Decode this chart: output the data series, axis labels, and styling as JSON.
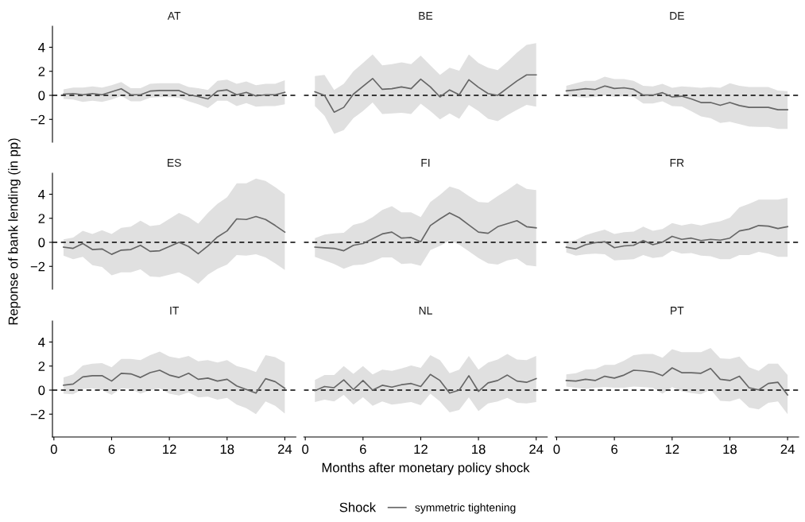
{
  "chart_data": [
    {
      "type": "line",
      "title": "AT",
      "x": [
        1,
        2,
        3,
        4,
        5,
        6,
        7,
        8,
        9,
        10,
        11,
        12,
        13,
        14,
        15,
        16,
        17,
        18,
        19,
        20,
        21,
        22,
        23,
        24
      ],
      "xlim": [
        -0.15,
        25.15
      ],
      "ylim": [
        -3.9,
        5.75
      ],
      "xticks": [
        0,
        6,
        12,
        18,
        24
      ],
      "yticks": [
        -2,
        0,
        2,
        4
      ],
      "tick_labels": "y",
      "grid": false,
      "ref_lines": [
        {
          "axis": "y",
          "value": 0,
          "color": "#000000",
          "line_style": "dashed"
        }
      ],
      "series": [
        {
          "color": "#666666",
          "values": [
            0.1,
            0.15,
            0.05,
            0.15,
            0.05,
            0.3,
            0.55,
            0.05,
            0.05,
            0.35,
            0.4,
            0.4,
            0.4,
            0.05,
            -0.1,
            -0.3,
            0.35,
            0.45,
            0.05,
            0.25,
            -0.05,
            0.05,
            0.05,
            0.25
          ],
          "upper": [
            0.5,
            0.65,
            0.65,
            0.75,
            0.65,
            0.85,
            1.1,
            0.6,
            0.6,
            0.95,
            1.0,
            1.0,
            1.0,
            0.7,
            0.6,
            0.45,
            1.2,
            1.3,
            0.95,
            1.15,
            0.85,
            0.95,
            0.95,
            1.25
          ],
          "lower": [
            -0.3,
            -0.35,
            -0.55,
            -0.45,
            -0.55,
            -0.35,
            -0.05,
            -0.5,
            -0.5,
            -0.2,
            -0.15,
            -0.15,
            -0.2,
            -0.5,
            -0.75,
            -1.05,
            -0.45,
            -0.45,
            -0.9,
            -0.65,
            -0.95,
            -0.9,
            -0.9,
            -0.75
          ]
        }
      ]
    },
    {
      "type": "line",
      "title": "BE",
      "x": [
        1,
        2,
        3,
        4,
        5,
        6,
        7,
        8,
        9,
        10,
        11,
        12,
        13,
        14,
        15,
        16,
        17,
        18,
        19,
        20,
        21,
        22,
        23,
        24
      ],
      "xlim": [
        -0.15,
        25.15
      ],
      "xticks": [
        0,
        6,
        12,
        18,
        24
      ],
      "yticks": [
        -2,
        0,
        2,
        4
      ],
      "tick_labels": false,
      "grid": false,
      "ref_lines": [
        {
          "axis": "y",
          "value": 0,
          "color": "#000000",
          "line_style": "dashed"
        }
      ],
      "series": [
        {
          "color": "#666666",
          "values": [
            0.3,
            0.0,
            -1.4,
            -1.0,
            0.1,
            0.75,
            1.4,
            0.5,
            0.55,
            0.7,
            0.55,
            1.35,
            0.7,
            -0.13,
            0.45,
            0.05,
            1.3,
            0.67,
            0.15,
            0.0,
            0.6,
            1.2,
            1.7,
            1.7
          ],
          "upper": [
            1.6,
            1.7,
            0.45,
            0.95,
            2.0,
            2.7,
            3.4,
            2.5,
            2.6,
            2.75,
            2.6,
            3.3,
            2.5,
            1.7,
            2.3,
            2.05,
            3.4,
            2.7,
            2.3,
            2.1,
            2.8,
            3.55,
            4.2,
            4.35
          ],
          "lower": [
            -0.9,
            -1.7,
            -3.2,
            -2.9,
            -1.9,
            -1.3,
            -0.6,
            -1.55,
            -1.5,
            -1.45,
            -1.55,
            -0.7,
            -1.3,
            -2.0,
            -1.5,
            -1.95,
            -0.8,
            -1.3,
            -1.95,
            -2.15,
            -1.65,
            -1.2,
            -0.8,
            -0.95
          ]
        }
      ]
    },
    {
      "type": "line",
      "title": "DE",
      "x": [
        1,
        2,
        3,
        4,
        5,
        6,
        7,
        8,
        9,
        10,
        11,
        12,
        13,
        14,
        15,
        16,
        17,
        18,
        19,
        20,
        21,
        22,
        23,
        24
      ],
      "xlim": [
        -0.15,
        25.15
      ],
      "xticks": [
        0,
        6,
        12,
        18,
        24
      ],
      "yticks": [
        -2,
        0,
        2,
        4
      ],
      "tick_labels": false,
      "grid": false,
      "ref_lines": [
        {
          "axis": "y",
          "value": 0,
          "color": "#000000",
          "line_style": "dashed"
        }
      ],
      "series": [
        {
          "color": "#666666",
          "values": [
            0.37,
            0.45,
            0.55,
            0.48,
            0.78,
            0.57,
            0.63,
            0.5,
            0.02,
            0.02,
            0.22,
            -0.13,
            -0.07,
            -0.3,
            -0.6,
            -0.6,
            -0.83,
            -0.6,
            -0.85,
            -1.0,
            -1.0,
            -1.0,
            -1.2,
            -1.2
          ],
          "upper": [
            0.8,
            1.0,
            1.2,
            1.2,
            1.55,
            1.35,
            1.35,
            1.2,
            0.8,
            0.75,
            0.95,
            0.63,
            0.75,
            0.7,
            0.63,
            0.7,
            0.63,
            1.0,
            0.8,
            0.7,
            0.7,
            0.7,
            0.4,
            0.35
          ],
          "lower": [
            -0.07,
            -0.13,
            -0.2,
            -0.13,
            0.02,
            -0.13,
            -0.07,
            -0.13,
            -0.67,
            -0.67,
            -0.5,
            -0.9,
            -0.93,
            -1.33,
            -1.76,
            -1.9,
            -2.3,
            -2.2,
            -2.4,
            -2.6,
            -2.63,
            -2.63,
            -2.8,
            -2.8
          ]
        }
      ]
    },
    {
      "type": "line",
      "title": "ES",
      "ylabel": "Reponse of bank lending (in pp)",
      "x": [
        1,
        2,
        3,
        4,
        5,
        6,
        7,
        8,
        9,
        10,
        11,
        12,
        13,
        14,
        15,
        16,
        17,
        18,
        19,
        20,
        21,
        22,
        23,
        24
      ],
      "xlim": [
        -0.15,
        25.15
      ],
      "ylim": [
        -3.9,
        5.75
      ],
      "xticks": [
        0,
        6,
        12,
        18,
        24
      ],
      "yticks": [
        -2,
        0,
        2,
        4
      ],
      "tick_labels": "y",
      "grid": false,
      "ref_lines": [
        {
          "axis": "y",
          "value": 0,
          "color": "#000000",
          "line_style": "dashed"
        }
      ],
      "series": [
        {
          "color": "#666666",
          "values": [
            -0.4,
            -0.5,
            -0.1,
            -0.6,
            -0.55,
            -1.0,
            -0.65,
            -0.6,
            -0.25,
            -0.75,
            -0.7,
            -0.35,
            0.0,
            -0.35,
            -0.95,
            -0.3,
            0.45,
            0.95,
            1.95,
            1.9,
            2.15,
            1.9,
            1.4,
            0.85
          ],
          "upper": [
            0.25,
            0.4,
            0.95,
            0.7,
            1.0,
            0.7,
            1.2,
            1.3,
            1.8,
            1.35,
            1.45,
            1.95,
            2.45,
            2.1,
            1.55,
            2.45,
            3.2,
            3.75,
            4.9,
            4.9,
            5.3,
            5.1,
            4.6,
            4.0
          ],
          "lower": [
            -1.1,
            -1.4,
            -1.2,
            -1.9,
            -2.05,
            -2.75,
            -2.5,
            -2.5,
            -2.25,
            -2.85,
            -2.9,
            -2.7,
            -2.5,
            -2.9,
            -3.45,
            -2.7,
            -2.2,
            -1.85,
            -1.05,
            -1.1,
            -1.0,
            -1.25,
            -1.75,
            -2.3
          ]
        }
      ]
    },
    {
      "type": "line",
      "title": "FI",
      "x": [
        1,
        2,
        3,
        4,
        5,
        6,
        7,
        8,
        9,
        10,
        11,
        12,
        13,
        14,
        15,
        16,
        17,
        18,
        19,
        20,
        21,
        22,
        23,
        24
      ],
      "xlim": [
        -0.15,
        25.15
      ],
      "xticks": [
        0,
        6,
        12,
        18,
        24
      ],
      "yticks": [
        -2,
        0,
        2,
        4
      ],
      "tick_labels": false,
      "grid": false,
      "ref_lines": [
        {
          "axis": "y",
          "value": 0,
          "color": "#000000",
          "line_style": "dashed"
        }
      ],
      "series": [
        {
          "color": "#666666",
          "values": [
            -0.4,
            -0.45,
            -0.5,
            -0.7,
            -0.25,
            -0.1,
            0.3,
            0.7,
            0.85,
            0.35,
            0.4,
            0.05,
            1.4,
            1.95,
            2.45,
            2.05,
            1.45,
            0.85,
            0.75,
            1.3,
            1.55,
            1.8,
            1.3,
            1.2
          ],
          "upper": [
            0.35,
            0.65,
            0.75,
            0.8,
            1.45,
            1.65,
            2.1,
            2.7,
            3.0,
            2.5,
            2.5,
            2.1,
            3.35,
            3.95,
            4.65,
            4.4,
            3.85,
            3.35,
            3.3,
            3.85,
            4.35,
            4.9,
            4.45,
            4.35
          ],
          "lower": [
            -1.2,
            -1.5,
            -1.8,
            -2.2,
            -1.9,
            -1.85,
            -1.6,
            -1.25,
            -1.25,
            -1.8,
            -1.75,
            -1.95,
            -0.65,
            -0.3,
            0.15,
            -0.2,
            -0.75,
            -1.3,
            -1.75,
            -1.85,
            -1.5,
            -1.35,
            -1.9,
            -2.0
          ]
        }
      ]
    },
    {
      "type": "line",
      "title": "FR",
      "x": [
        1,
        2,
        3,
        4,
        5,
        6,
        7,
        8,
        9,
        10,
        11,
        12,
        13,
        14,
        15,
        16,
        17,
        18,
        19,
        20,
        21,
        22,
        23,
        24
      ],
      "xlim": [
        -0.15,
        25.15
      ],
      "xticks": [
        0,
        6,
        12,
        18,
        24
      ],
      "yticks": [
        -2,
        0,
        2,
        4
      ],
      "tick_labels": false,
      "grid": false,
      "ref_lines": [
        {
          "axis": "y",
          "value": 0,
          "color": "#000000",
          "line_style": "dashed"
        }
      ],
      "series": [
        {
          "color": "#666666",
          "values": [
            -0.4,
            -0.55,
            -0.2,
            -0.03,
            0.05,
            -0.45,
            -0.3,
            -0.25,
            0.15,
            -0.2,
            0.02,
            0.5,
            0.25,
            0.35,
            0.15,
            0.25,
            0.18,
            0.35,
            0.95,
            1.1,
            1.4,
            1.35,
            1.15,
            1.3
          ],
          "upper": [
            0.05,
            0.2,
            0.6,
            0.85,
            1.05,
            0.7,
            0.85,
            0.9,
            1.3,
            0.95,
            1.1,
            1.6,
            1.4,
            1.55,
            1.4,
            1.6,
            1.75,
            2.05,
            2.9,
            3.2,
            3.55,
            3.55,
            3.55,
            3.7
          ],
          "lower": [
            -0.85,
            -1.1,
            -1.0,
            -0.95,
            -1.0,
            -1.5,
            -1.45,
            -1.4,
            -1.05,
            -1.3,
            -1.2,
            -0.7,
            -0.95,
            -0.9,
            -1.1,
            -1.15,
            -1.4,
            -1.4,
            -1.05,
            -1.05,
            -0.8,
            -0.95,
            -1.2,
            -1.2
          ]
        }
      ]
    },
    {
      "type": "line",
      "title": "IT",
      "x": [
        1,
        2,
        3,
        4,
        5,
        6,
        7,
        8,
        9,
        10,
        11,
        12,
        13,
        14,
        15,
        16,
        17,
        18,
        19,
        20,
        21,
        22,
        23,
        24
      ],
      "xlim": [
        -0.15,
        25.15
      ],
      "ylim": [
        -3.9,
        5.75
      ],
      "xticks": [
        0,
        6,
        12,
        18,
        24
      ],
      "yticks": [
        -2,
        0,
        2,
        4
      ],
      "grid": false,
      "ref_lines": [
        {
          "axis": "y",
          "value": 0,
          "color": "#000000",
          "line_style": "dashed"
        }
      ],
      "series": [
        {
          "color": "#666666",
          "values": [
            0.4,
            0.5,
            1.1,
            1.2,
            1.2,
            0.75,
            1.4,
            1.35,
            1.05,
            1.45,
            1.65,
            1.25,
            1.05,
            1.4,
            0.9,
            1.0,
            0.75,
            0.9,
            0.35,
            0.05,
            -0.25,
            0.95,
            0.7,
            0.15
          ],
          "upper": [
            1.05,
            1.3,
            2.05,
            2.2,
            2.25,
            1.9,
            2.6,
            2.6,
            2.5,
            2.9,
            3.2,
            2.8,
            2.65,
            2.85,
            2.4,
            2.5,
            2.3,
            2.5,
            2.0,
            1.8,
            1.5,
            2.9,
            2.75,
            2.3
          ],
          "lower": [
            -0.3,
            -0.35,
            0.1,
            0.15,
            0.0,
            -0.4,
            0.15,
            0.1,
            -0.3,
            0.0,
            0.15,
            -0.3,
            -0.45,
            -0.2,
            -0.6,
            -0.55,
            -0.8,
            -0.65,
            -1.2,
            -1.5,
            -2.0,
            -0.95,
            -1.3,
            -1.95
          ]
        }
      ]
    },
    {
      "type": "line",
      "title": "NL",
      "xlabel": "Months after monetary policy shock",
      "legend": "bottom",
      "legend_title": "Shock",
      "x": [
        1,
        2,
        3,
        4,
        5,
        6,
        7,
        8,
        9,
        10,
        11,
        12,
        13,
        14,
        15,
        16,
        17,
        18,
        19,
        20,
        21,
        22,
        23,
        24
      ],
      "xlim": [
        -0.15,
        25.15
      ],
      "xticks": [
        0,
        6,
        12,
        18,
        24
      ],
      "yticks": [
        -2,
        0,
        2,
        4
      ],
      "tick_labels": "x",
      "grid": false,
      "ref_lines": [
        {
          "axis": "y",
          "value": 0,
          "color": "#000000",
          "line_style": "dashed"
        }
      ],
      "series": [
        {
          "name": "symmetric tightening",
          "color": "#666666",
          "values": [
            -0.05,
            0.3,
            0.2,
            0.85,
            0.05,
            0.8,
            0.0,
            0.4,
            0.25,
            0.45,
            0.55,
            0.3,
            1.3,
            0.8,
            -0.25,
            0.0,
            1.2,
            -0.1,
            0.6,
            0.8,
            1.25,
            0.75,
            0.65,
            0.95
          ],
          "upper": [
            0.85,
            1.25,
            1.25,
            2.0,
            1.35,
            2.0,
            1.3,
            1.7,
            1.6,
            1.8,
            2.05,
            1.85,
            2.9,
            2.5,
            1.4,
            1.7,
            2.85,
            1.7,
            2.3,
            2.55,
            3.0,
            2.55,
            2.5,
            2.85
          ],
          "lower": [
            -1.0,
            -0.8,
            -0.95,
            -0.4,
            -1.2,
            -0.6,
            -1.3,
            -0.95,
            -1.2,
            -1.1,
            -1.0,
            -1.25,
            -0.3,
            -0.95,
            -1.85,
            -1.65,
            -0.6,
            -1.75,
            -1.1,
            -0.95,
            -0.65,
            -1.05,
            -1.1,
            -1.0
          ]
        }
      ]
    },
    {
      "type": "line",
      "title": "PT",
      "x": [
        1,
        2,
        3,
        4,
        5,
        6,
        7,
        8,
        9,
        10,
        11,
        12,
        13,
        14,
        15,
        16,
        17,
        18,
        19,
        20,
        21,
        22,
        23,
        24
      ],
      "xlim": [
        -0.15,
        25.15
      ],
      "xticks": [
        0,
        6,
        12,
        18,
        24
      ],
      "yticks": [
        -2,
        0,
        2,
        4
      ],
      "tick_labels": "x",
      "grid": false,
      "ref_lines": [
        {
          "axis": "y",
          "value": 0,
          "color": "#000000",
          "line_style": "dashed"
        }
      ],
      "series": [
        {
          "color": "#666666",
          "values": [
            0.8,
            0.75,
            0.9,
            0.8,
            1.15,
            1.0,
            1.25,
            1.65,
            1.6,
            1.5,
            1.2,
            1.85,
            1.45,
            1.45,
            1.4,
            1.8,
            0.9,
            0.8,
            1.15,
            0.2,
            0.02,
            0.55,
            0.65,
            -0.4
          ],
          "upper": [
            1.3,
            1.4,
            1.7,
            1.75,
            2.1,
            2.1,
            2.45,
            2.9,
            3.0,
            3.0,
            2.7,
            3.4,
            3.15,
            3.15,
            3.15,
            3.5,
            2.65,
            2.6,
            2.8,
            1.9,
            1.6,
            2.2,
            2.2,
            1.25
          ],
          "lower": [
            0.3,
            0.2,
            0.1,
            0.2,
            0.25,
            0.2,
            0.2,
            0.3,
            0.25,
            0.2,
            -0.3,
            0.25,
            -0.1,
            -0.25,
            -0.35,
            0.05,
            -0.9,
            -0.95,
            -0.7,
            -1.45,
            -1.6,
            -1.05,
            -0.95,
            -2.0
          ]
        }
      ]
    }
  ]
}
